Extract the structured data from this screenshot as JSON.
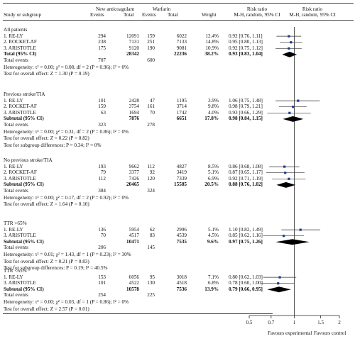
{
  "header": {
    "study": "Study or subgroup",
    "group1": "New anticoagulant",
    "group2": "Warfarin",
    "events": "Events",
    "total": "Total",
    "weight": "Weight",
    "rr": "Risk ratio",
    "rr_sub": "M-H, random, 95% CI",
    "rr2": "Risk ratio",
    "rr2_sub": "M-H, random, 95% CI"
  },
  "axis": {
    "ticks": [
      "0.5",
      "0.7",
      "1",
      "1.5",
      "2"
    ],
    "left_label": "Favours experimental",
    "right_label": "Favours control"
  },
  "chart_data": {
    "type": "forest",
    "scale": "log",
    "xlim": [
      0.5,
      2
    ],
    "null_line": 1,
    "groups": [
      {
        "title": "All patients",
        "studies": [
          {
            "name": "1. RE-LY",
            "e1": "294",
            "n1": "12091",
            "e2": "159",
            "n2": "6022",
            "weight": "12.4%",
            "ci": "0.92 [0.76, 1.11]",
            "rr": 0.92,
            "lo": 0.76,
            "hi": 1.11
          },
          {
            "name": "2. ROCKET-AF",
            "e1": "238",
            "n1": "7131",
            "e2": "251",
            "n2": "7133",
            "weight": "14.8%",
            "ci": "0.95 [0.80, 1.13]",
            "rr": 0.95,
            "lo": 0.8,
            "hi": 1.13
          },
          {
            "name": "3. ARISTOTLE",
            "e1": "175",
            "n1": "9120",
            "e2": "190",
            "n2": "9081",
            "weight": "10.9%",
            "ci": "0.92 [0.75, 1.12]",
            "rr": 0.92,
            "lo": 0.75,
            "hi": 1.12
          }
        ],
        "subtotal": {
          "label": "Total (95% CI)",
          "n1": "28342",
          "n2": "22236",
          "weight": "38.2%",
          "ci": "0.93 [0.83, 1.04]",
          "rr": 0.93,
          "lo": 0.83,
          "hi": 1.04
        },
        "events": {
          "label": "Total events",
          "e1": "707",
          "e2": "600"
        },
        "heterogeneity": "Heterogeneity: τ² = 0.00; χ² = 0.08, df = 2 (P = 0.96); I² = 0%",
        "overall": "Test for overall effect: Z = 1.30 (P = 0.19)",
        "subgroup_diff": ""
      },
      {
        "title": "Previous stroke/TIA",
        "studies": [
          {
            "name": "1. RE-LY",
            "e1": "101",
            "n1": "2428",
            "e2": "47",
            "n2": "1195",
            "weight": "3.9%",
            "ci": "1.06 [0.75, 1.48]",
            "rr": 1.06,
            "lo": 0.75,
            "hi": 1.48
          },
          {
            "name": "2. ROCKET-AF",
            "e1": "159",
            "n1": "3754",
            "e2": "161",
            "n2": "3714",
            "weight": "9.8%",
            "ci": "0.98 [0.79, 1.21]",
            "rr": 0.98,
            "lo": 0.79,
            "hi": 1.21
          },
          {
            "name": "3. ARISTOTLE",
            "e1": "63",
            "n1": "1694",
            "e2": "70",
            "n2": "1742",
            "weight": "4.0%",
            "ci": "0.93 [0.66, 1.29]",
            "rr": 0.93,
            "lo": 0.66,
            "hi": 1.29
          }
        ],
        "subtotal": {
          "label": "Subtotal (95% CI)",
          "n1": "7876",
          "n2": "6651",
          "weight": "17.8%",
          "ci": "0.98 [0.84, 1.15]",
          "rr": 0.98,
          "lo": 0.84,
          "hi": 1.15
        },
        "events": {
          "label": "Total events",
          "e1": "323",
          "e2": "278"
        },
        "heterogeneity": "Heterogeneity: τ² = 0.00; χ² = 0.31, df = 2 (P = 0.86); I² = 0%",
        "overall": "Test for overall effect: Z = 0.22 (P = 0.82)",
        "subgroup_diff": "Test for subgroup differences: P = 0.34; I² = 0%"
      },
      {
        "title": "No previous stroke/TIA",
        "studies": [
          {
            "name": "1. RE-LY",
            "e1": "193",
            "n1": "9662",
            "e2": "112",
            "n2": "4827",
            "weight": "8.5%",
            "ci": "0.86 [0.68, 1.08]",
            "rr": 0.86,
            "lo": 0.68,
            "hi": 1.08
          },
          {
            "name": "2. ROCKET-AF",
            "e1": "79",
            "n1": "3377",
            "e2": "92",
            "n2": "3419",
            "weight": "5.1%",
            "ci": "0.87 [0.65, 1.17]",
            "rr": 0.87,
            "lo": 0.65,
            "hi": 1.17
          },
          {
            "name": "3. ARISTOTLE",
            "e1": "112",
            "n1": "7426",
            "e2": "120",
            "n2": "7339",
            "weight": "6.9%",
            "ci": "0.92 [0.71, 1.19]",
            "rr": 0.92,
            "lo": 0.71,
            "hi": 1.19
          }
        ],
        "subtotal": {
          "label": "Subtotal (95% CI)",
          "n1": "20465",
          "n2": "15585",
          "weight": "20.5%",
          "ci": "0.88 [0.76, 1.02]",
          "rr": 0.88,
          "lo": 0.76,
          "hi": 1.02
        },
        "events": {
          "label": "Total events",
          "e1": "384",
          "e2": "324"
        },
        "heterogeneity": "Heterogeneity: τ² = 0.00; χ² = 0.17, df = 2 (P = 0.92); I² = 0%",
        "overall": "Test for overall effect: Z = 1.64 (P = 0.10)",
        "subgroup_diff": ""
      },
      {
        "title": "TTR >65%",
        "studies": [
          {
            "name": "1. RE-LY",
            "e1": "136",
            "n1": "5954",
            "e2": "62",
            "n2": "2996",
            "weight": "5.1%",
            "ci": "1.10 [0.82, 1.49]",
            "rr": 1.1,
            "lo": 0.82,
            "hi": 1.49
          },
          {
            "name": "3. ARISTOTLE",
            "e1": "70",
            "n1": "4517",
            "e2": "83",
            "n2": "4539",
            "weight": "4.5%",
            "ci": "0.85 [0.62, 1.16]",
            "rr": 0.85,
            "lo": 0.62,
            "hi": 1.16
          }
        ],
        "subtotal": {
          "label": "Subtotal (95% CI)",
          "n1": "10471",
          "n2": "7535",
          "weight": "9.6%",
          "ci": "0.97 [0.75, 1.26]",
          "rr": 0.97,
          "lo": 0.75,
          "hi": 1.26
        },
        "events": {
          "label": "Total events",
          "e1": "206",
          "e2": "145"
        },
        "heterogeneity": "Heterogeneity: τ² = 0.01; χ² = 1.43, df = 1 (P = 0.23); I² = 30%",
        "overall": "Test for overall effect: Z = 0.21 (P = 0.83)",
        "subgroup_diff": "Test for subgroup differences: P = 0.19; I² = 40.5%"
      },
      {
        "title": "TTR <65%",
        "studies": [
          {
            "name": "1. RE-LY",
            "e1": "153",
            "n1": "6056",
            "e2": "95",
            "n2": "3018",
            "weight": "7.1%",
            "ci": "0.80 [0.62, 1.03]",
            "rr": 0.8,
            "lo": 0.62,
            "hi": 1.03
          },
          {
            "name": "3. ARISTOTLE",
            "e1": "101",
            "n1": "4522",
            "e2": "130",
            "n2": "4518",
            "weight": "6.8%",
            "ci": "0.78 [0.60, 1.00]",
            "rr": 0.78,
            "lo": 0.6,
            "hi": 1.0
          }
        ],
        "subtotal": {
          "label": "Subtotal (95% CI)",
          "n1": "10578",
          "n2": "7536",
          "weight": "13.9%",
          "ci": "0.79 [0.66, 0.95]",
          "rr": 0.79,
          "lo": 0.66,
          "hi": 0.95
        },
        "events": {
          "label": "Total events",
          "e1": "254",
          "e2": "225"
        },
        "heterogeneity": "Heterogeneity: τ² = 0.00; χ² = 0.03, df = 1 (P = 0.86); I² = 0%",
        "overall": "Test for overall effect: Z = 2.57 (P = 0.01)",
        "subgroup_diff": ""
      }
    ]
  }
}
